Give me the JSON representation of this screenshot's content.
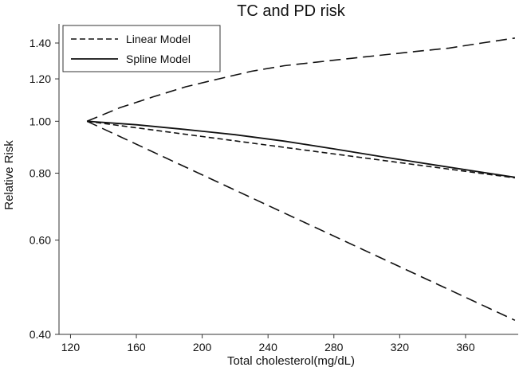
{
  "chart_data": {
    "type": "line",
    "title": "TC and PD risk",
    "xlabel": "Total cholesterol(mg/dL)",
    "ylabel": "Relative Risk",
    "xlim": [
      113,
      392
    ],
    "ylim": [
      0.4,
      1.52
    ],
    "y_scale": "log",
    "x_ticks": [
      120,
      160,
      200,
      240,
      280,
      320,
      360
    ],
    "y_ticks": [
      0.4,
      0.6,
      0.8,
      1.0,
      1.2,
      1.4
    ],
    "grid": false,
    "legend_position": "top-left",
    "legend": [
      {
        "label": "Linear Model",
        "style": "dashed"
      },
      {
        "label": "Spline Model",
        "style": "solid"
      }
    ],
    "series": [
      {
        "name": "Linear Model",
        "role": "estimate",
        "style": "dashed",
        "x": [
          130,
          390
        ],
        "y": [
          1.0,
          0.784
        ]
      },
      {
        "name": "Linear Model",
        "role": "upper-bound",
        "style": "long-dashed",
        "x": [
          130,
          150,
          170,
          190,
          210,
          230,
          250,
          270,
          290,
          310,
          330,
          350,
          370,
          390
        ],
        "y": [
          1.0,
          1.06,
          1.11,
          1.16,
          1.2,
          1.24,
          1.27,
          1.29,
          1.31,
          1.33,
          1.35,
          1.37,
          1.4,
          1.43
        ]
      },
      {
        "name": "Linear Model",
        "role": "lower-bound",
        "style": "long-dashed",
        "x": [
          130,
          390
        ],
        "y": [
          1.0,
          0.425
        ]
      },
      {
        "name": "Spline Model",
        "role": "estimate",
        "style": "solid",
        "x": [
          130,
          160,
          190,
          220,
          250,
          280,
          310,
          340,
          370,
          390
        ],
        "y": [
          1.0,
          0.985,
          0.965,
          0.944,
          0.918,
          0.888,
          0.858,
          0.83,
          0.803,
          0.786
        ]
      }
    ],
    "colors": {
      "line": "#111111",
      "axis": "#333333",
      "background": "#ffffff"
    }
  }
}
